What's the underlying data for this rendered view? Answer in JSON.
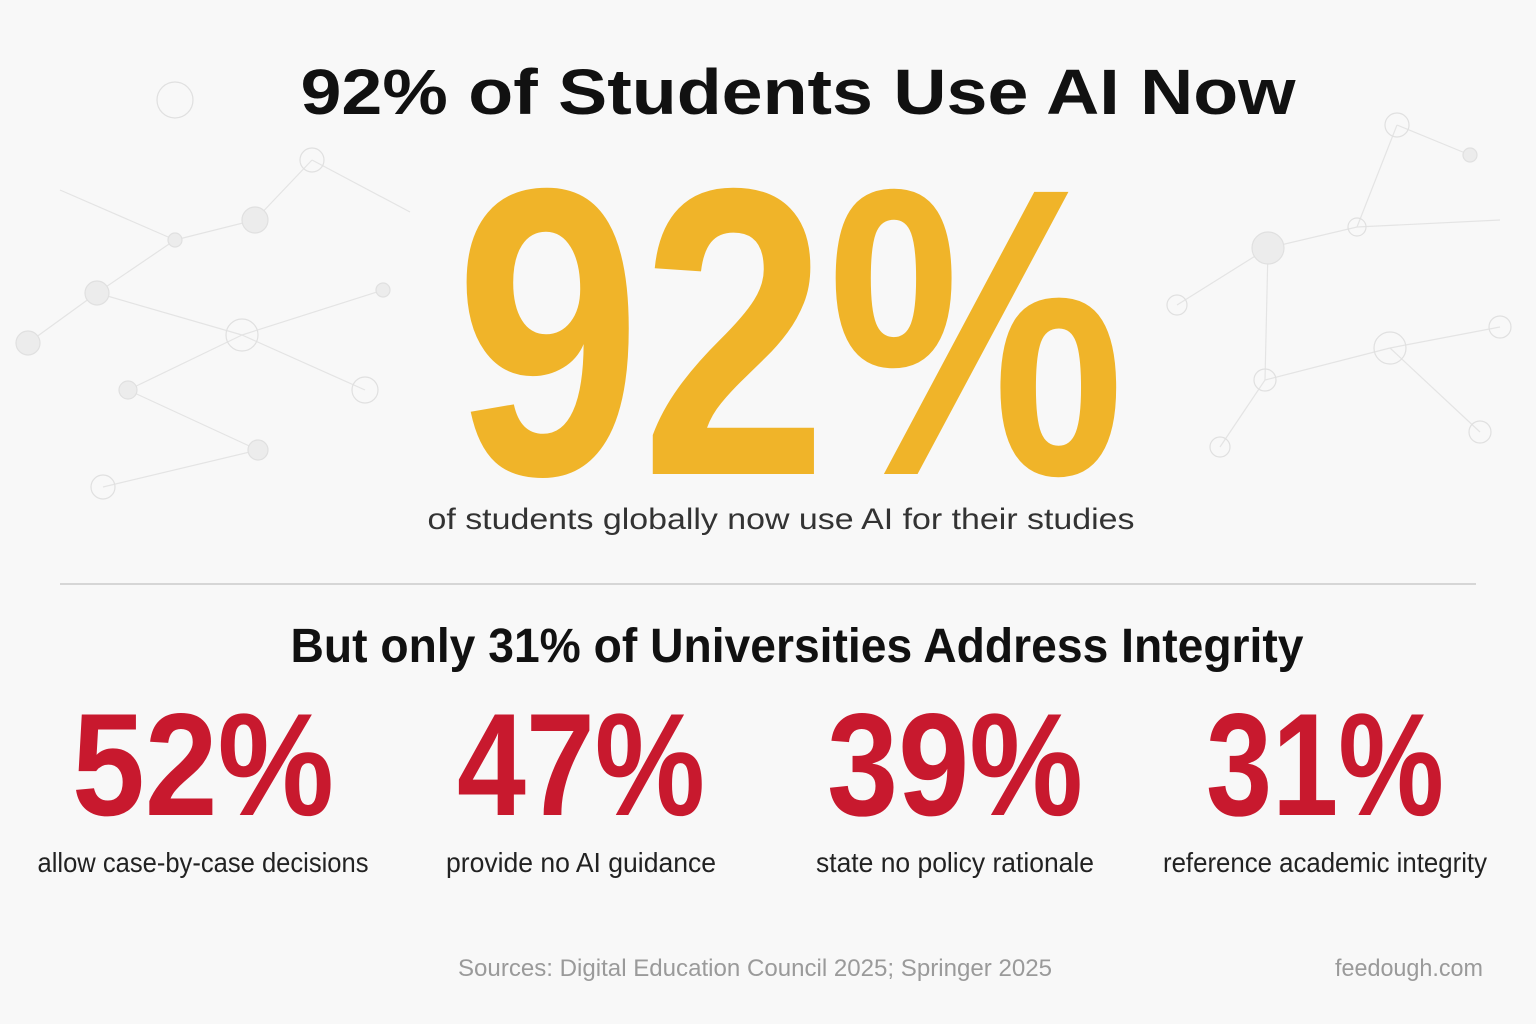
{
  "header": {
    "title": "92% of Students Use AI Now"
  },
  "hero": {
    "figure": "92%",
    "caption": "of students globally now use AI for their studies"
  },
  "section": {
    "heading": "But only 31% of Universities Address Integrity",
    "stats": [
      {
        "figure": "52%",
        "label": "allow case-by-case decisions"
      },
      {
        "figure": "47%",
        "label": "provide no AI guidance"
      },
      {
        "figure": "39%",
        "label": "state no policy rationale"
      },
      {
        "figure": "31%",
        "label": "reference academic integrity"
      }
    ]
  },
  "footer": {
    "sources": "Sources: Digital Education Council 2025; Springer 2025",
    "site": "feedough.com"
  }
}
